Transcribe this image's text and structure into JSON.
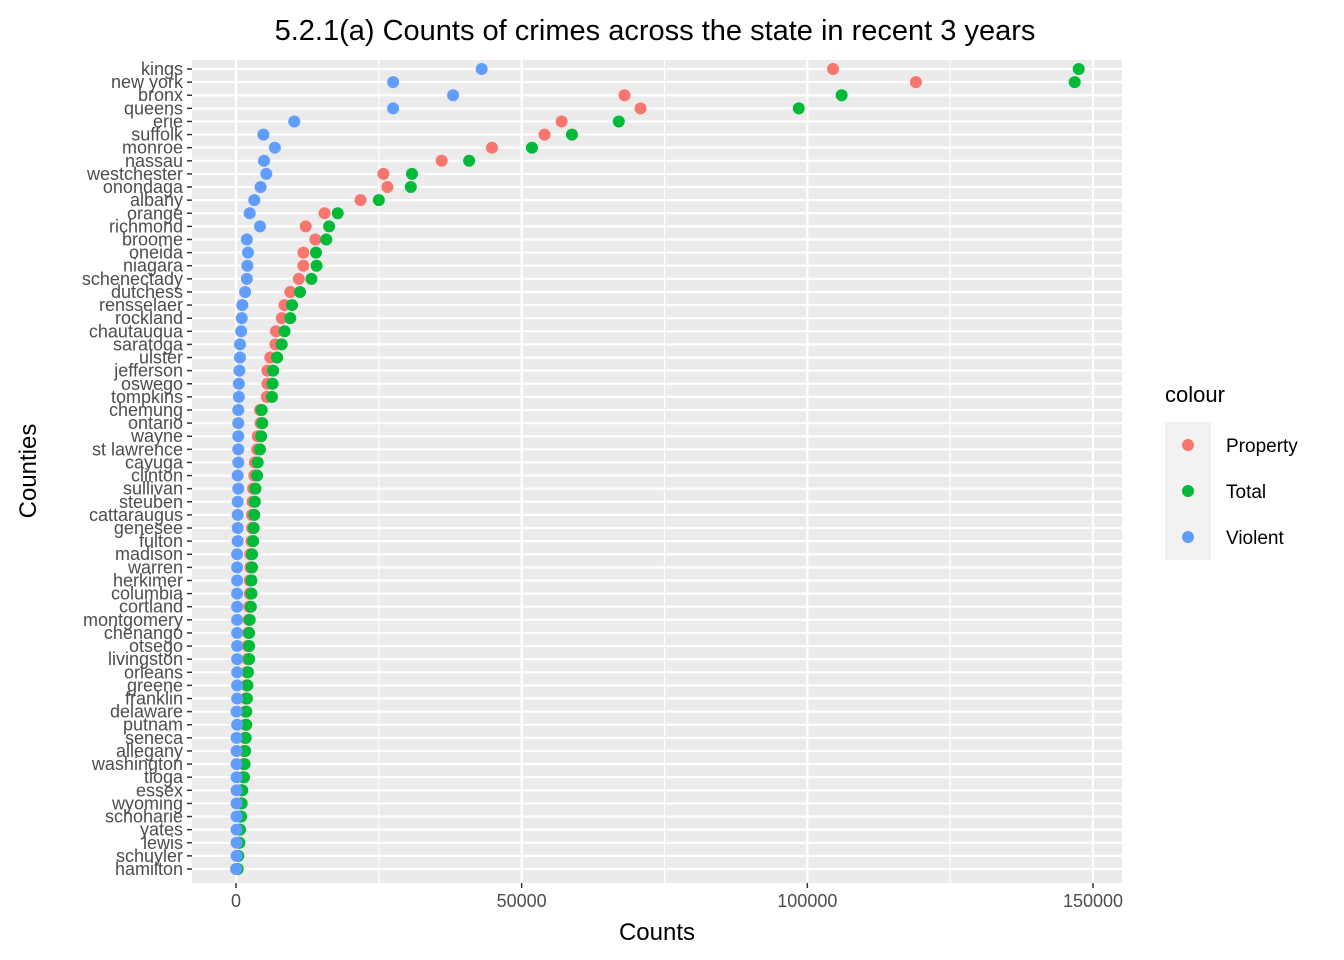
{
  "chart_data": {
    "type": "scatter",
    "title": "5.2.1(a) Counts of crimes across the state in recent 3 years",
    "xlabel": "Counts",
    "ylabel": "Counties",
    "xlim": [
      -8000,
      155000
    ],
    "x_ticks": [
      0,
      50000,
      100000,
      150000
    ],
    "x_tick_labels": [
      "0",
      "50000",
      "100000",
      "150000"
    ],
    "grid": true,
    "legend": {
      "title": "colour",
      "position": "right"
    },
    "colors": {
      "Property": "#F8766D",
      "Total": "#00BA38",
      "Violent": "#619CFF",
      "panel": "#EBEBEB",
      "grid": "#FFFFFF"
    },
    "categories": [
      "kings",
      "new york",
      "bronx",
      "queens",
      "erie",
      "suffolk",
      "monroe",
      "nassau",
      "westchester",
      "onondaga",
      "albany",
      "orange",
      "richmond",
      "broome",
      "oneida",
      "niagara",
      "schenectady",
      "dutchess",
      "rensselaer",
      "rockland",
      "chautauqua",
      "saratoga",
      "ulster",
      "jefferson",
      "oswego",
      "tompkins",
      "chemung",
      "ontario",
      "wayne",
      "st lawrence",
      "cayuga",
      "clinton",
      "sullivan",
      "steuben",
      "cattaraugus",
      "genesee",
      "fulton",
      "madison",
      "warren",
      "herkimer",
      "columbia",
      "cortland",
      "montgomery",
      "chenango",
      "otsego",
      "livingston",
      "orleans",
      "greene",
      "franklin",
      "delaware",
      "putnam",
      "seneca",
      "allegany",
      "washington",
      "tioga",
      "essex",
      "wyoming",
      "schoharie",
      "yates",
      "lewis",
      "schuyler",
      "hamilton"
    ],
    "series": [
      {
        "name": "Property",
        "values": [
          104500,
          119000,
          68000,
          70800,
          57000,
          54000,
          44800,
          36000,
          25800,
          26500,
          21800,
          15500,
          12200,
          13900,
          11800,
          11800,
          11000,
          9500,
          8500,
          8000,
          7000,
          6900,
          6000,
          5500,
          5500,
          5400,
          4200,
          4300,
          3800,
          3700,
          3300,
          3200,
          3000,
          2900,
          2800,
          2800,
          2700,
          2500,
          2500,
          2400,
          2400,
          2300,
          2200,
          2100,
          2000,
          2000,
          1900,
          1800,
          1700,
          1600,
          1600,
          1500,
          1400,
          1300,
          1200,
          900,
          800,
          700,
          600,
          500,
          300,
          200
        ]
      },
      {
        "name": "Total",
        "values": [
          147500,
          146800,
          106000,
          98500,
          67000,
          58800,
          51800,
          40800,
          30800,
          30600,
          25000,
          17800,
          16300,
          15800,
          14000,
          14100,
          13200,
          11200,
          9800,
          9500,
          8500,
          8000,
          7200,
          6500,
          6400,
          6300,
          4500,
          4600,
          4400,
          4200,
          3800,
          3700,
          3400,
          3300,
          3200,
          3100,
          3000,
          2800,
          2800,
          2700,
          2700,
          2600,
          2400,
          2300,
          2300,
          2300,
          2100,
          2000,
          1900,
          1800,
          1800,
          1700,
          1600,
          1500,
          1400,
          1100,
          1000,
          900,
          700,
          600,
          400,
          300
        ]
      },
      {
        "name": "Violent",
        "values": [
          43000,
          27500,
          38000,
          27500,
          10200,
          4800,
          6800,
          4900,
          5300,
          4300,
          3200,
          2400,
          4200,
          1900,
          2100,
          2000,
          1900,
          1600,
          1100,
          1000,
          900,
          700,
          700,
          600,
          500,
          500,
          400,
          400,
          400,
          400,
          400,
          300,
          400,
          300,
          300,
          300,
          300,
          200,
          200,
          200,
          200,
          200,
          200,
          200,
          200,
          200,
          200,
          200,
          200,
          100,
          200,
          100,
          100,
          100,
          100,
          100,
          100,
          100,
          100,
          100,
          100,
          0
        ]
      }
    ]
  }
}
